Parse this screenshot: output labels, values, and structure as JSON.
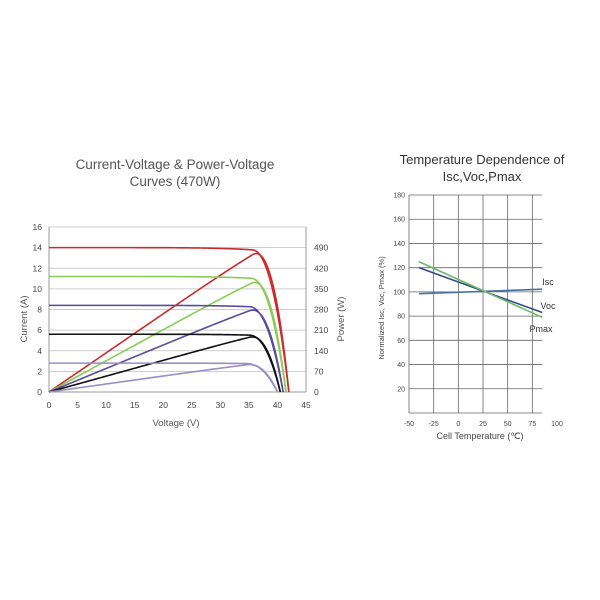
{
  "chart_data": [
    {
      "type": "line",
      "title": "Current-Voltage & Power-Voltage Curves (470W)",
      "title_lines": [
        "Current-Voltage & Power-Voltage",
        "Curves (470W)"
      ],
      "xlabel": "Voltage (V)",
      "ylabel": "Current (A)",
      "y2label": "Power (W)",
      "xlim": [
        0,
        45
      ],
      "ylim": [
        0,
        16
      ],
      "y2lim": [
        0,
        560
      ],
      "x_ticks": [
        0,
        5,
        10,
        15,
        20,
        25,
        30,
        35,
        40,
        45
      ],
      "y_ticks": [
        0,
        2,
        4,
        6,
        8,
        10,
        12,
        14,
        16
      ],
      "y2_ticks": [
        0,
        70,
        140,
        210,
        280,
        350,
        420,
        490
      ],
      "grid": true,
      "curves": [
        {
          "color": "#cc2a2a",
          "isc": 14.0,
          "voc": 42.0,
          "vmp": 35.5,
          "pmax": 470
        },
        {
          "color": "#88cc55",
          "isc": 11.2,
          "voc": 41.5,
          "vmp": 35.3,
          "pmax": 372
        },
        {
          "color": "#5a4b9c",
          "isc": 8.4,
          "voc": 41.0,
          "vmp": 35.0,
          "pmax": 278
        },
        {
          "color": "#111111",
          "isc": 5.6,
          "voc": 40.5,
          "vmp": 35.0,
          "pmax": 187
        },
        {
          "color": "#9a8cc4",
          "isc": 2.8,
          "voc": 40.0,
          "vmp": 34.5,
          "pmax": 93
        }
      ]
    },
    {
      "type": "line",
      "title": "Temperature Dependence of Isc,Voc,Pmax",
      "title_lines": [
        "Temperature Dependence of",
        "Isc,Voc,Pmax"
      ],
      "xlabel": "Cell Temperature (℃)",
      "ylabel": "Normalized Isc, Voc, Pmax (%)",
      "xlim": [
        -50,
        100
      ],
      "ylim": [
        0,
        180
      ],
      "x_ticks": [
        -50,
        -25,
        0,
        25,
        50,
        75,
        100
      ],
      "y_ticks": [
        20,
        40,
        60,
        80,
        100,
        120,
        140,
        160,
        180
      ],
      "grid": true,
      "series": [
        {
          "name": "Isc",
          "color": "#4a6fa5",
          "x": [
            -40,
            85
          ],
          "y": [
            98.5,
            102.2
          ]
        },
        {
          "name": "Voc",
          "color": "#334a80",
          "x": [
            -40,
            85
          ],
          "y": [
            120,
            83
          ]
        },
        {
          "name": "Pmax",
          "color": "#6cb86a",
          "x": [
            -40,
            85
          ],
          "y": [
            125,
            79
          ]
        }
      ]
    }
  ]
}
